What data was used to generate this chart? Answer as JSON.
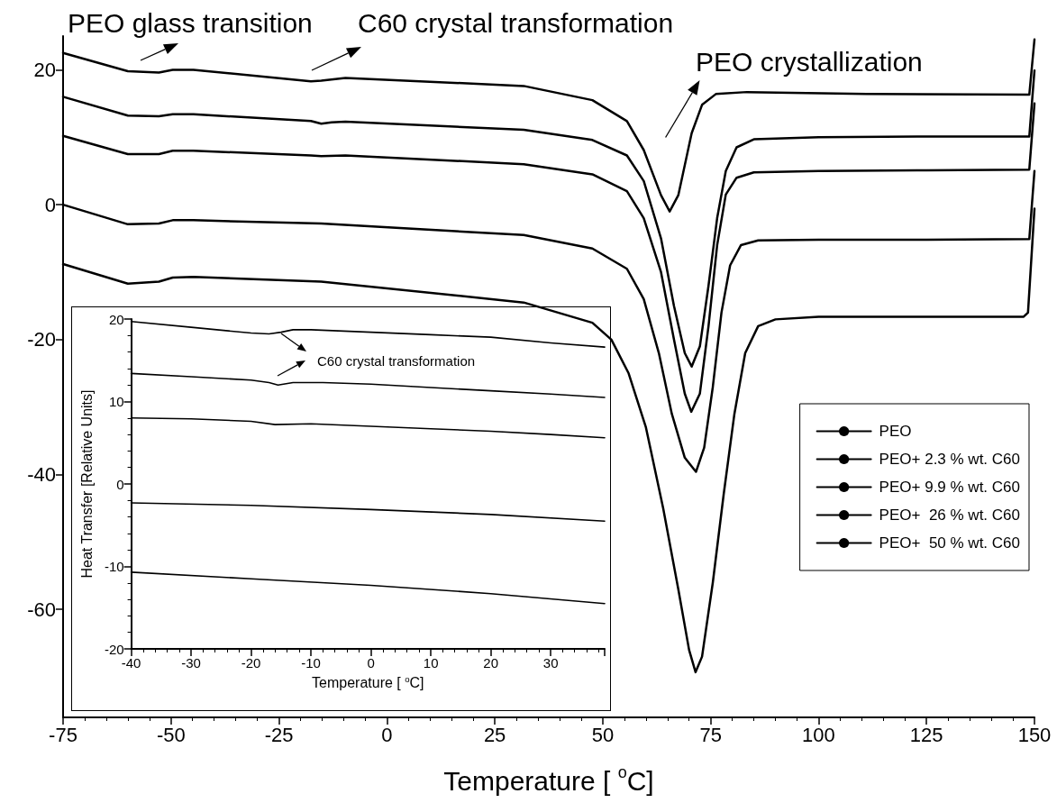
{
  "chart_data": [
    {
      "type": "line",
      "xlabel": "Temperature [ $^{o}$C]",
      "xlim": [
        -75,
        150
      ],
      "xticks": [
        -75,
        -50,
        -25,
        0,
        25,
        50,
        75,
        100,
        125,
        150
      ],
      "ylim": [
        -76,
        25
      ],
      "yticks": [
        -60,
        -40,
        -20,
        0,
        20
      ],
      "grid": false,
      "legend": "right",
      "annotations": [
        "PEO glass transition",
        "C60 crystal transformation",
        "PEO crystallization"
      ],
      "series": [
        {
          "name": "PEO",
          "color": "#000000",
          "x": [
            -75,
            -60,
            -52.8,
            -49.6,
            -44.8,
            -17.6,
            -15.2,
            -9.6,
            31.7,
            47.6,
            55.6,
            59.5,
            63.5,
            65.5,
            67.5,
            70.6,
            73,
            76.2,
            83.4,
            111.1,
            148.8,
            150
          ],
          "values": [
            22.5,
            19.8,
            19.6,
            20.0,
            20.0,
            18.3,
            18.4,
            18.8,
            17.6,
            15.5,
            12.4,
            8.1,
            1.4,
            -1.0,
            1.4,
            10.6,
            14.8,
            16.4,
            16.7,
            16.4,
            16.3,
            24.5
          ]
        },
        {
          "name": "PEO+ 2.3 % wt. C60",
          "color": "#000000",
          "x": [
            -75,
            -60,
            -52.8,
            -49.6,
            -44.8,
            -17.6,
            -15.2,
            -12.8,
            -9.6,
            31.7,
            47.6,
            55.6,
            59.5,
            63.5,
            66.5,
            69,
            70.6,
            72.5,
            74.5,
            76.5,
            78.5,
            81,
            85,
            100,
            125,
            148.8,
            150
          ],
          "values": [
            16.0,
            13.2,
            13.1,
            13.4,
            13.4,
            12.4,
            12.0,
            12.2,
            12.3,
            11.1,
            9.6,
            7.3,
            3.5,
            -5,
            -15,
            -22,
            -24,
            -21,
            -12,
            -2,
            5,
            8.5,
            9.7,
            10.0,
            10.1,
            10.1,
            19.9
          ]
        },
        {
          "name": "PEO+ 9.9 % wt. C60",
          "color": "#000000",
          "x": [
            -75,
            -60,
            -52.8,
            -49.6,
            -44.8,
            -17.6,
            -15.2,
            -9.6,
            31.7,
            47.6,
            55.6,
            59.5,
            63.5,
            66.5,
            69,
            70.5,
            72.5,
            74.5,
            76.5,
            78.5,
            81,
            85,
            100,
            125,
            148.8,
            150
          ],
          "values": [
            10.2,
            7.5,
            7.5,
            8.0,
            8.0,
            7.3,
            7.2,
            7.3,
            6.0,
            4.5,
            2,
            -2,
            -10,
            -20,
            -28,
            -30.7,
            -28,
            -18,
            -6,
            1.5,
            4,
            4.8,
            5.0,
            5.1,
            5.2,
            15.0
          ]
        },
        {
          "name": "PEO+  26 % wt. C60",
          "color": "#000000",
          "x": [
            -75,
            -60,
            -52.8,
            -49.6,
            -44.8,
            -15.2,
            31.7,
            47.6,
            55.6,
            59.5,
            63,
            66,
            69,
            71.6,
            73.5,
            75.5,
            77.5,
            79.5,
            82,
            86,
            100,
            125,
            148.8,
            150
          ],
          "values": [
            0,
            -2.9,
            -2.8,
            -2.3,
            -2.3,
            -2.8,
            -4.5,
            -6.5,
            -9.5,
            -14,
            -22,
            -31,
            -37.5,
            -39.6,
            -36,
            -27,
            -16,
            -9,
            -6,
            -5.3,
            -5.2,
            -5.2,
            -5.1,
            5.0
          ]
        },
        {
          "name": "PEO+  50 % wt. C60",
          "color": "#000000",
          "x": [
            -75,
            -60,
            -52.8,
            -49.6,
            -44.8,
            -15.2,
            31.7,
            47.6,
            52,
            56,
            60,
            64,
            67.5,
            70,
            71.5,
            73,
            75.5,
            78,
            80.5,
            83,
            86,
            90,
            100,
            125,
            147.5,
            148.5,
            150
          ],
          "values": [
            -8.8,
            -11.7,
            -11.4,
            -10.8,
            -10.7,
            -11.4,
            -14.5,
            -17.5,
            -20,
            -25,
            -33,
            -45,
            -57,
            -66,
            -69.3,
            -67,
            -56,
            -43,
            -31,
            -22,
            -18,
            -17,
            -16.6,
            -16.6,
            -16.6,
            -16,
            -0.6
          ]
        }
      ]
    },
    {
      "type": "line",
      "xlabel": "Temperature [ $^{o}$C]",
      "ylabel": "Heat Transfer [Relative Units]",
      "xlim": [
        -40,
        39
      ],
      "xticks": [
        -40,
        -30,
        -20,
        -10,
        0,
        10,
        20,
        30
      ],
      "ylim": [
        -20,
        20
      ],
      "yticks": [
        -20,
        -10,
        0,
        10,
        20
      ],
      "grid": false,
      "annotations": [
        "C60 crystal transformation"
      ],
      "series": [
        {
          "color": "#000000",
          "x": [
            -40,
            -30,
            -20,
            -17,
            -15,
            -13,
            -10,
            0,
            10,
            20,
            30,
            39
          ],
          "values": [
            19.7,
            19.0,
            18.3,
            18.2,
            18.4,
            18.7,
            18.7,
            18.4,
            18.1,
            17.8,
            17.1,
            16.6
          ]
        },
        {
          "color": "#000000",
          "x": [
            -40,
            -30,
            -20,
            -17,
            -15.5,
            -13,
            -8,
            0,
            10,
            20,
            30,
            39
          ],
          "values": [
            13.4,
            13.0,
            12.6,
            12.3,
            12.0,
            12.3,
            12.3,
            12.1,
            11.7,
            11.3,
            10.9,
            10.5
          ]
        },
        {
          "color": "#000000",
          "x": [
            -40,
            -30,
            -20,
            -16,
            -10,
            0,
            10,
            20,
            30,
            39
          ],
          "values": [
            8.0,
            7.9,
            7.6,
            7.2,
            7.3,
            7.0,
            6.7,
            6.4,
            6.0,
            5.6
          ]
        },
        {
          "color": "#000000",
          "x": [
            -40,
            -20,
            0,
            20,
            39
          ],
          "values": [
            -2.3,
            -2.6,
            -3.1,
            -3.7,
            -4.5
          ]
        },
        {
          "color": "#000000",
          "x": [
            -40,
            -20,
            0,
            20,
            39
          ],
          "values": [
            -10.7,
            -11.5,
            -12.3,
            -13.3,
            -14.5
          ]
        }
      ]
    }
  ]
}
